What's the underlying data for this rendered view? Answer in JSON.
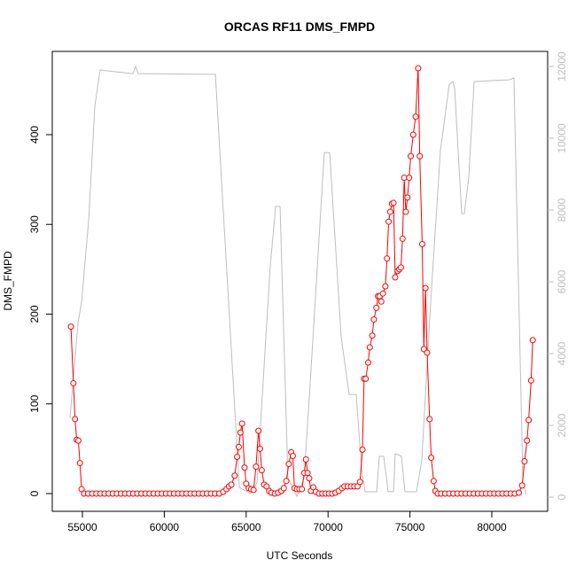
{
  "chart_data": {
    "type": "line",
    "title": "ORCAS RF11 DMS_FMPD",
    "xlabel": "UTC Seconds",
    "ylabel": "DMS_FMPD",
    "xlim": [
      53160,
      83409
    ],
    "xticks": [
      55000,
      60000,
      65000,
      70000,
      75000,
      80000
    ],
    "ylim": [
      -19.75,
      492.8
    ],
    "yticks": [
      0,
      100,
      200,
      300,
      400
    ],
    "y2lim": [
      -395,
      12420
    ],
    "y2ticks": [
      0,
      2000,
      4000,
      6000,
      8000,
      10000,
      12000
    ],
    "series": [
      {
        "color": "#ff0000",
        "marker": "circle",
        "x": [
          54300,
          54450,
          54550,
          54650,
          54750,
          54850,
          54950,
          55100,
          55350,
          55600,
          55850,
          56100,
          56350,
          56600,
          56850,
          57100,
          57350,
          57600,
          57850,
          58100,
          58350,
          58600,
          58850,
          59100,
          59350,
          59600,
          59850,
          60100,
          60350,
          60600,
          60850,
          61100,
          61350,
          61600,
          61850,
          62100,
          62350,
          62600,
          62850,
          63100,
          63350,
          63600,
          63800,
          63950,
          64100,
          64300,
          64450,
          64550,
          64650,
          64750,
          64900,
          65000,
          65150,
          65300,
          65450,
          65600,
          65750,
          65850,
          65950,
          66100,
          66250,
          66400,
          66550,
          66750,
          66950,
          67150,
          67300,
          67450,
          67600,
          67750,
          67850,
          67950,
          68100,
          68250,
          68400,
          68550,
          68650,
          68750,
          68850,
          68950,
          69100,
          69250,
          69450,
          69650,
          69850,
          70050,
          70250,
          70450,
          70650,
          70850,
          71000,
          71200,
          71400,
          71600,
          71800,
          71950,
          72100,
          72200,
          72300,
          72450,
          72550,
          72700,
          72800,
          72950,
          73050,
          73150,
          73250,
          73350,
          73500,
          73600,
          73700,
          73800,
          73900,
          74000,
          74100,
          74250,
          74350,
          74450,
          74550,
          74650,
          74750,
          74850,
          74950,
          75050,
          75200,
          75350,
          75500,
          75600,
          75750,
          75850,
          75950,
          76050,
          76200,
          76300,
          76450,
          76550,
          76700,
          76900,
          77150,
          77400,
          77650,
          77900,
          78150,
          78400,
          78650,
          78900,
          79150,
          79400,
          79650,
          79900,
          80150,
          80400,
          80650,
          80900,
          81150,
          81400,
          81650,
          81850,
          82000,
          82150,
          82250,
          82400,
          82500
        ],
        "values": [
          186,
          123,
          83,
          60,
          59,
          34,
          5,
          0,
          0,
          0,
          0,
          0,
          0,
          0,
          0,
          0,
          0,
          0,
          0,
          0,
          0,
          0,
          0,
          0,
          0,
          0,
          0,
          0,
          0,
          0,
          0,
          0,
          0,
          0,
          0,
          0,
          0,
          0,
          0,
          0,
          0,
          2,
          5,
          8,
          10,
          20,
          41,
          52,
          68,
          78,
          29,
          11,
          6,
          5,
          4,
          30,
          70,
          50,
          26,
          10,
          8,
          3,
          1,
          0,
          1,
          3,
          6,
          14,
          33,
          46,
          42,
          6,
          5,
          5,
          5,
          23,
          38,
          23,
          17,
          3,
          7,
          2,
          0,
          0,
          0,
          0,
          0,
          1,
          3,
          6,
          8,
          8,
          8,
          8,
          8,
          13,
          49,
          128,
          128,
          146,
          163,
          176,
          194,
          207,
          220,
          220,
          214,
          223,
          231,
          262,
          303,
          314,
          323,
          324,
          241,
          248,
          250,
          252,
          284,
          352,
          314,
          330,
          352,
          376,
          400,
          420,
          474,
          376,
          278,
          161,
          229,
          157,
          83,
          40,
          14,
          3,
          0,
          0,
          0,
          0,
          0,
          0,
          0,
          0,
          0,
          0,
          0,
          0,
          0,
          0,
          0,
          0,
          0,
          0,
          0,
          0,
          1,
          9,
          36,
          59,
          82,
          126,
          171
        ]
      },
      {
        "color": "#bebebe",
        "axis": "y2",
        "x": [
          54240,
          54730,
          54950,
          55380,
          55760,
          56080,
          58080,
          58250,
          58410,
          63120,
          64580,
          65280,
          65660,
          66470,
          66800,
          67070,
          67550,
          68100,
          68530,
          68850,
          69770,
          70100,
          70800,
          71290,
          71720,
          72050,
          72260,
          72970,
          73130,
          73400,
          73670,
          74000,
          74100,
          74480,
          74700,
          75400,
          75720,
          76270,
          76860,
          77400,
          77620,
          77730,
          78160,
          78320,
          78590,
          78920,
          81080,
          81350,
          81460,
          81900,
          82100
        ],
        "values": [
          2200,
          4850,
          5450,
          7700,
          10900,
          11900,
          11800,
          12000,
          11800,
          11780,
          270,
          100,
          400,
          6440,
          8100,
          8100,
          520,
          25,
          520,
          2740,
          9600,
          9600,
          4470,
          2860,
          2860,
          760,
          150,
          150,
          1140,
          1140,
          150,
          150,
          1210,
          1140,
          150,
          150,
          1010,
          5460,
          9650,
          11500,
          11580,
          11400,
          7900,
          7900,
          8900,
          11580,
          11630,
          11680,
          9400,
          400,
          70
        ]
      }
    ]
  }
}
